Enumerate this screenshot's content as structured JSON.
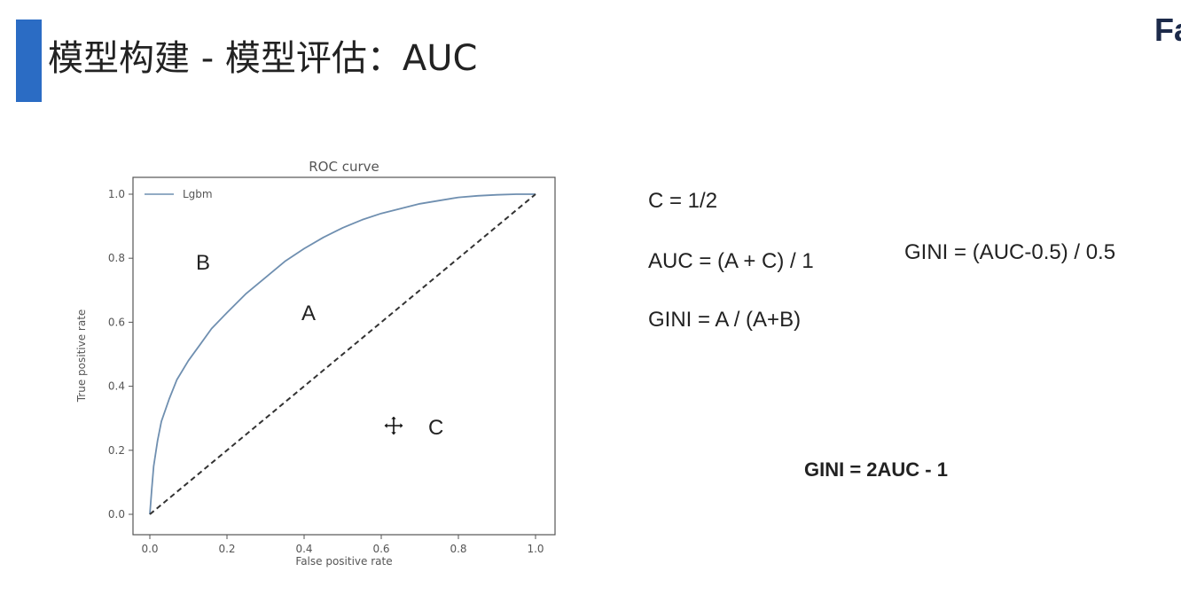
{
  "slide": {
    "title": "模型构建 - 模型评估：AUC",
    "brand_text": "Fa",
    "accent_color": "#2b6cc4"
  },
  "chart_data": {
    "type": "line",
    "title": "ROC curve",
    "xlabel": "False positive rate",
    "ylabel": "True positive rate",
    "xlim": [
      0,
      1
    ],
    "ylim": [
      0,
      1
    ],
    "xticks": [
      "0.0",
      "0.2",
      "0.4",
      "0.6",
      "0.8",
      "1.0"
    ],
    "yticks": [
      "0.0",
      "0.2",
      "0.4",
      "0.6",
      "0.8",
      "1.0"
    ],
    "grid": false,
    "legend_position": "top-left",
    "series": [
      {
        "name": "Lgbm",
        "color": "#6f8fb0",
        "style": "solid",
        "x": [
          0.0,
          0.005,
          0.01,
          0.02,
          0.03,
          0.05,
          0.07,
          0.1,
          0.13,
          0.16,
          0.2,
          0.25,
          0.3,
          0.35,
          0.4,
          0.45,
          0.5,
          0.55,
          0.6,
          0.65,
          0.7,
          0.75,
          0.8,
          0.85,
          0.9,
          0.95,
          1.0
        ],
        "y": [
          0.0,
          0.08,
          0.15,
          0.23,
          0.29,
          0.36,
          0.42,
          0.48,
          0.53,
          0.58,
          0.63,
          0.69,
          0.74,
          0.79,
          0.83,
          0.865,
          0.895,
          0.92,
          0.94,
          0.955,
          0.97,
          0.98,
          0.99,
          0.995,
          0.998,
          1.0,
          1.0
        ]
      },
      {
        "color": "#333333",
        "style": "dashed",
        "x": [
          0.0,
          1.0
        ],
        "y": [
          0.0,
          1.0
        ]
      }
    ],
    "annotations": [
      {
        "text": "B"
      },
      {
        "text": "A"
      },
      {
        "text": "C"
      }
    ]
  },
  "formulas": {
    "c_def": "C = 1/2",
    "auc_def": "AUC = (A + C) / 1",
    "gini_area": "GINI = A / (A+B)",
    "gini_from_auc": "GINI = (AUC-0.5) / 0.5",
    "gini_simplified": "GINI = 2AUC - 1"
  },
  "icons": {
    "cursor": "move-cursor-icon"
  }
}
